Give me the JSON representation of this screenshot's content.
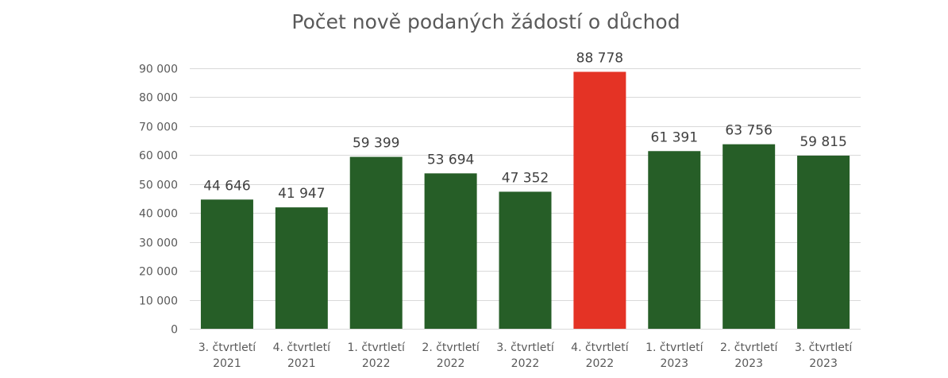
{
  "chart_data": {
    "type": "bar",
    "title": "Počet nově podaných žádostí o důchod",
    "xlabel": "",
    "ylabel": "",
    "ylim": [
      0,
      90000
    ],
    "yticks": [
      0,
      10000,
      20000,
      30000,
      40000,
      50000,
      60000,
      70000,
      80000,
      90000
    ],
    "ytick_labels": [
      "0",
      "10 000",
      "20 000",
      "30 000",
      "40 000",
      "50 000",
      "60 000",
      "70 000",
      "80 000",
      "90 000"
    ],
    "grid": true,
    "legend": "none",
    "categories": [
      [
        "3. čtvrtletí",
        "2021"
      ],
      [
        "4. čtvrtletí",
        "2021"
      ],
      [
        "1. čtvrtletí",
        "2022"
      ],
      [
        "2. čtvrtletí",
        "2022"
      ],
      [
        "3. čtvrtletí",
        "2022"
      ],
      [
        "4. čtvrtletí",
        "2022"
      ],
      [
        "1. čtvrtletí",
        "2023"
      ],
      [
        "2. čtvrtletí",
        "2023"
      ],
      [
        "3. čtvrtletí",
        "2023"
      ]
    ],
    "values": [
      44646,
      41947,
      59399,
      53694,
      47352,
      88778,
      61391,
      63756,
      59815
    ],
    "data_labels": [
      "44 646",
      "41 947",
      "59 399",
      "53 694",
      "47 352",
      "88 778",
      "61 391",
      "63 756",
      "59 815"
    ],
    "colors": {
      "default": "#265e27",
      "highlight": "#e43325"
    },
    "highlight_index": 5
  }
}
